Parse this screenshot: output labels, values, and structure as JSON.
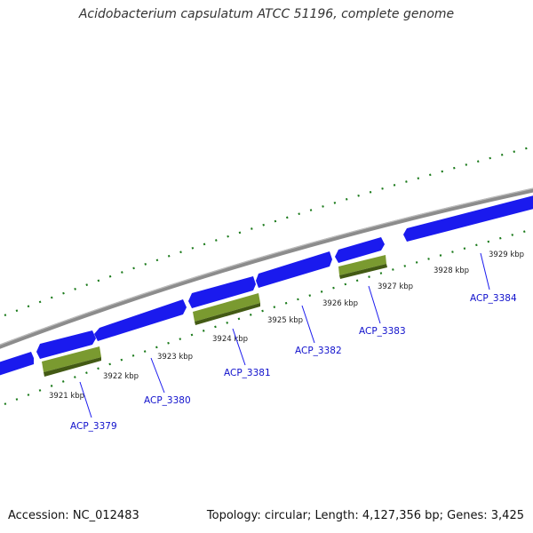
{
  "title": "Acidobacterium capsulatum ATCC 51196, complete genome",
  "footer": {
    "accession": "Accession: NC_012483",
    "summary": "Topology: circular; Length: 4,127,356 bp; Genes: 3,425"
  },
  "colors": {
    "cds": "#1a1aee",
    "cds_shadow": "#0b0b8a",
    "gene": "#7a9a30",
    "gene_shadow": "#435a14",
    "backbone": "#8c8c8c",
    "tick": "#1a7a1a",
    "label": "#1010cc"
  },
  "tick_labels": [
    "3921 kbp",
    "3922 kbp",
    "3923 kbp",
    "3924 kbp",
    "3925 kbp",
    "3926 kbp",
    "3927 kbp",
    "3928 kbp",
    "3929 kbp"
  ],
  "gene_labels": [
    "ACP_3379",
    "ACP_3380",
    "ACP_3381",
    "ACP_3382",
    "ACP_3383",
    "ACP_3384"
  ]
}
